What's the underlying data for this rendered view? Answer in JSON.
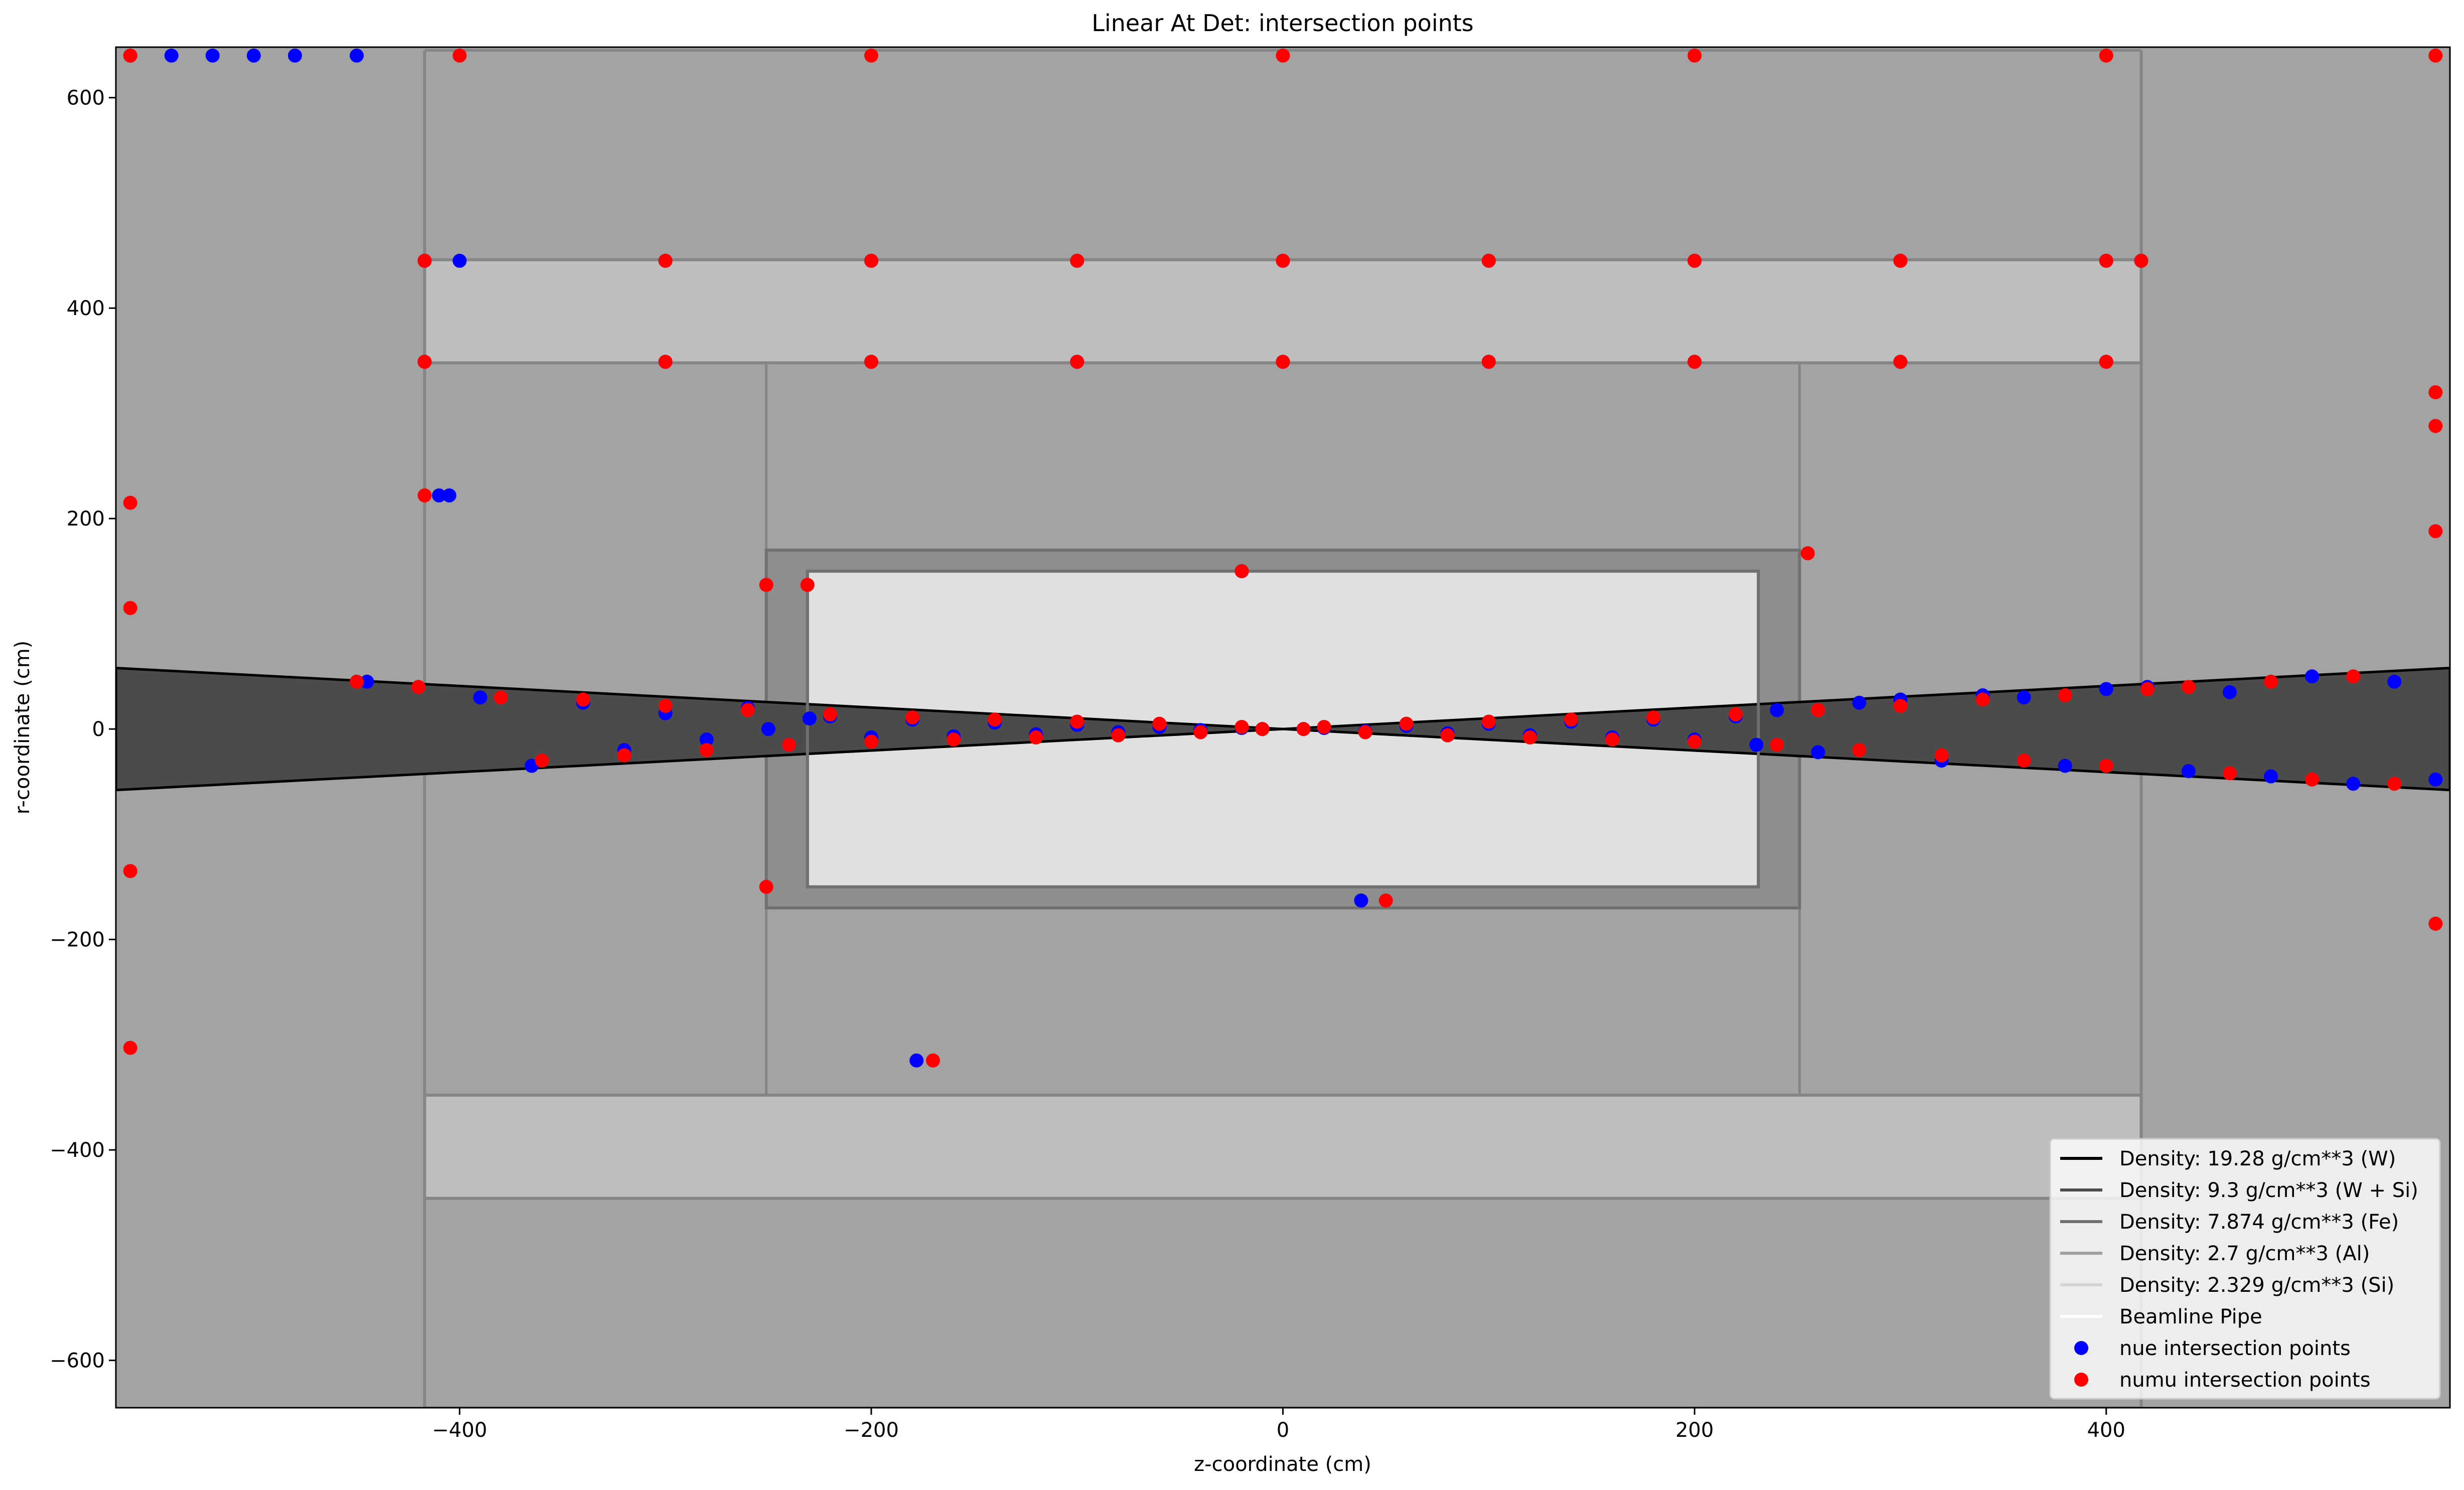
{
  "chart_data": {
    "type": "scatter",
    "title": "Linear At Det: intersection points",
    "xlabel": "z-coordinate (cm)",
    "ylabel": "r-coordinate (cm)",
    "xlim": [
      -567,
      567
    ],
    "ylim": [
      -645,
      648
    ],
    "xticks": [
      -400,
      -200,
      0,
      200,
      400
    ],
    "yticks": [
      -600,
      -400,
      -200,
      0,
      200,
      400,
      600
    ],
    "xtick_labels": [
      "−400",
      "−200",
      "0",
      "200",
      "400"
    ],
    "ytick_labels": [
      "−600",
      "−400",
      "−200",
      "0",
      "200",
      "400",
      "600"
    ],
    "grid": false,
    "legend_position": "lower right",
    "colors": {
      "background": "#a3a3a3",
      "tungsten": "#4b4b4b",
      "w_si": "#bebebe",
      "iron": "#8e8e8e",
      "aluminum": "#a7a7a7",
      "silicon": "#e0e0e0",
      "nue": "#0000ff",
      "numu": "#ff0000"
    },
    "legend": [
      {
        "label": "Density: 19.28 g/cm**3 (W)",
        "kind": "line",
        "color": "#000000"
      },
      {
        "label": "Density: 9.3 g/cm**3 (W + Si)",
        "kind": "line",
        "color": "#4d4d4d"
      },
      {
        "label": "Density: 7.874 g/cm**3 (Fe)",
        "kind": "line",
        "color": "#707070"
      },
      {
        "label": "Density: 2.7 g/cm**3 (Al)",
        "kind": "line",
        "color": "#a0a0a0"
      },
      {
        "label": "Density: 2.329 g/cm**3 (Si)",
        "kind": "line",
        "color": "#d4d4d4"
      },
      {
        "label": "Beamline Pipe",
        "kind": "line",
        "color": "#ffffff"
      },
      {
        "label": "nue intersection points",
        "kind": "marker",
        "color": "#0000ff"
      },
      {
        "label": "numu intersection points",
        "kind": "marker",
        "color": "#ff0000"
      }
    ],
    "geometry": {
      "tungsten_cone": {
        "z": [
          -567,
          567
        ],
        "r_end": 58,
        "r_center": 0
      },
      "outer_boundary": {
        "z": [
          -417,
          417
        ],
        "r": [
          -645,
          645
        ]
      },
      "w_si_band_top": {
        "z": [
          -417,
          417
        ],
        "r": [
          348,
          446
        ]
      },
      "w_si_band_bottom": {
        "z": [
          -417,
          417
        ],
        "r": [
          -446,
          -348
        ]
      },
      "iron_frame": {
        "z": [
          -251,
          251
        ],
        "r": [
          -170,
          170
        ]
      },
      "silicon_tracker": {
        "z": [
          -231,
          231
        ],
        "r": [
          -150,
          150
        ]
      },
      "fe_walls": {
        "z_outer": [
          -251,
          251
        ],
        "r": [
          -348,
          348
        ]
      }
    },
    "series": [
      {
        "name": "nue intersection points",
        "color": "#0000ff",
        "x": [
          -410,
          -405,
          -178,
          -20,
          38,
          -250,
          -445,
          -390,
          -365,
          -340,
          -320,
          -300,
          -280,
          -260,
          -240,
          -230,
          -220,
          -200,
          -180,
          -160,
          -140,
          -120,
          -100,
          -80,
          -60,
          -40,
          -20,
          -10,
          10,
          20,
          40,
          60,
          80,
          100,
          120,
          140,
          160,
          180,
          200,
          220,
          230,
          240,
          260,
          280,
          300,
          320,
          340,
          360,
          380,
          400,
          420,
          440,
          460,
          480,
          500,
          520,
          540,
          560,
          -417,
          -400,
          -300,
          -200,
          -100,
          0,
          100,
          200,
          300,
          400,
          417,
          -417,
          -300,
          -200,
          -100,
          0,
          100,
          200,
          300,
          400,
          -560,
          -500,
          -450,
          -520,
          -480,
          -540
        ],
        "y": [
          222,
          222,
          -315,
          150,
          -163,
          0,
          45,
          30,
          -35,
          25,
          -20,
          15,
          -10,
          20,
          -15,
          10,
          12,
          -8,
          9,
          -7,
          6,
          -5,
          4,
          -3,
          2,
          -1,
          1,
          0,
          0,
          1,
          -2,
          3,
          -4,
          5,
          -6,
          7,
          -8,
          9,
          -10,
          12,
          -15,
          18,
          -22,
          25,
          28,
          -30,
          32,
          30,
          -35,
          38,
          40,
          -40,
          35,
          -45,
          50,
          -52,
          45,
          -48,
          445,
          445,
          445,
          445,
          445,
          445,
          445,
          445,
          445,
          445,
          445,
          349,
          349,
          349,
          349,
          349,
          349,
          349,
          349,
          349,
          640,
          640,
          640,
          640,
          640,
          640
        ]
      },
      {
        "name": "numu intersection points",
        "color": "#ff0000",
        "x": [
          -417,
          -170,
          -20,
          50,
          255,
          -251,
          -251,
          -231,
          -450,
          -420,
          -380,
          -360,
          -340,
          -320,
          -300,
          -280,
          -260,
          -240,
          -220,
          -200,
          -180,
          -160,
          -140,
          -120,
          -100,
          -80,
          -60,
          -40,
          -20,
          -10,
          10,
          20,
          40,
          60,
          80,
          100,
          120,
          140,
          160,
          180,
          200,
          220,
          240,
          260,
          280,
          300,
          320,
          340,
          360,
          380,
          400,
          420,
          440,
          460,
          480,
          500,
          520,
          540,
          -560,
          -560,
          -560,
          -560,
          560,
          560,
          560,
          560,
          -417,
          -300,
          -200,
          -100,
          0,
          100,
          200,
          300,
          400,
          417,
          -417,
          -300,
          -200,
          -100,
          0,
          100,
          200,
          300,
          400,
          -560,
          -400,
          -200,
          0,
          200,
          400,
          560
        ],
        "y": [
          222,
          -315,
          150,
          -163,
          167,
          137,
          -150,
          137,
          45,
          40,
          30,
          -30,
          28,
          -25,
          22,
          -20,
          18,
          -15,
          14,
          -12,
          11,
          -10,
          9,
          -8,
          7,
          -6,
          5,
          -3,
          2,
          0,
          0,
          2,
          -3,
          5,
          -6,
          7,
          -8,
          9,
          -10,
          11,
          -12,
          14,
          -15,
          18,
          -20,
          22,
          -25,
          28,
          -30,
          32,
          -35,
          38,
          40,
          -42,
          45,
          -48,
          50,
          -52,
          215,
          115,
          -135,
          -303,
          320,
          288,
          188,
          -185,
          445,
          445,
          445,
          445,
          445,
          445,
          445,
          445,
          445,
          445,
          349,
          349,
          349,
          349,
          349,
          349,
          349,
          349,
          349,
          640,
          640,
          640,
          640,
          640,
          640,
          640
        ]
      }
    ]
  }
}
